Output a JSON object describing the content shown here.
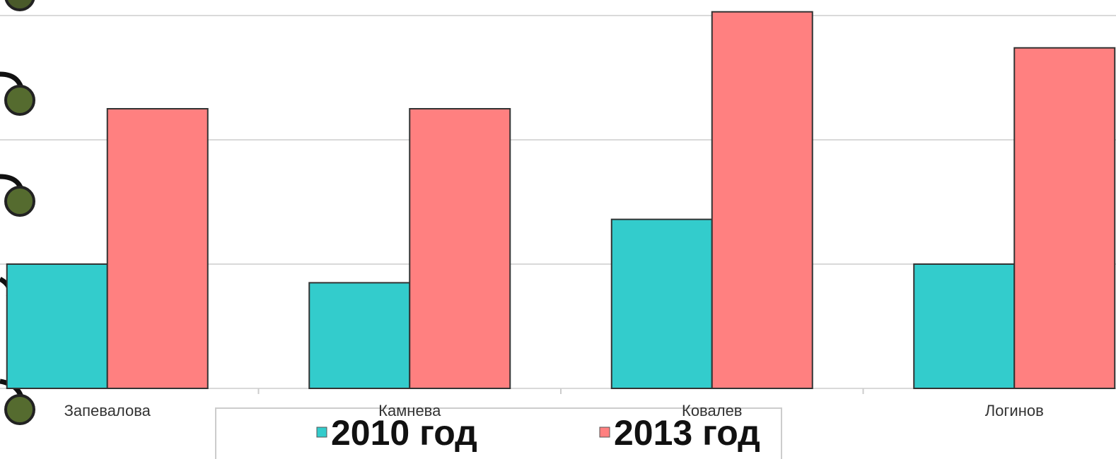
{
  "chart_data": {
    "type": "bar",
    "categories": [
      "Запевалова",
      "Камнева",
      "Ковалев",
      "Логинов"
    ],
    "series": [
      {
        "name": "2010 год",
        "color": "#33cccc",
        "values": [
          1.0,
          0.85,
          1.36,
          1.0
        ]
      },
      {
        "name": "2013 год",
        "color": "#ff8080",
        "values": [
          2.25,
          2.25,
          3.03,
          2.74
        ]
      }
    ],
    "ylim": [
      0,
      3.125
    ],
    "yticks": [
      0,
      1,
      2,
      3
    ],
    "grid": true
  }
}
